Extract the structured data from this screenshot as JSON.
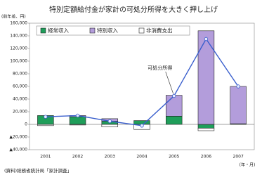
{
  "chart_data": {
    "type": "bar",
    "title": "特別定額給付金が家計の可処分所得を大きく押し上げ",
    "y_label": "(前年差、円)",
    "x_label": "(年・月)",
    "source": "(資料)総務省統計局「家計調査」",
    "categories": [
      "2001",
      "2002",
      "2003",
      "2004",
      "2005",
      "2006",
      "2007"
    ],
    "series": [
      {
        "name": "経常収入",
        "color": "#1f9e5a",
        "values": [
          14000,
          12000,
          5000,
          6000,
          13000,
          -6000,
          1000
        ]
      },
      {
        "name": "特別収入",
        "color": "#b39ddb",
        "values": [
          0,
          2000,
          4000,
          0,
          33000,
          148000,
          59000
        ]
      },
      {
        "name": "非消費支出",
        "color": "#ffffff",
        "values": [
          -2000,
          -1000,
          -4000,
          -8000,
          0,
          -4000,
          0
        ]
      },
      {
        "name": "可処分所得",
        "type": "line",
        "color": "#3a5fcd",
        "values": [
          12000,
          14000,
          5000,
          -2000,
          45000,
          135000,
          60000
        ]
      }
    ],
    "ylim": [
      -40000,
      160000
    ],
    "yticks": [
      {
        "value": -40000,
        "label": "▲40,000"
      },
      {
        "value": -20000,
        "label": "▲20,000"
      },
      0,
      {
        "value": 20000,
        "label": "20,000"
      },
      {
        "value": 40000,
        "label": "40,000"
      },
      {
        "value": 60000,
        "label": "60,000"
      },
      {
        "value": 80000,
        "label": "80,000"
      },
      {
        "value": 100000,
        "label": "100,000"
      },
      {
        "value": 120000,
        "label": "120,000"
      },
      {
        "value": 140000,
        "label": "140,000"
      },
      {
        "value": 160000,
        "label": "160,000"
      }
    ],
    "grid": false
  }
}
